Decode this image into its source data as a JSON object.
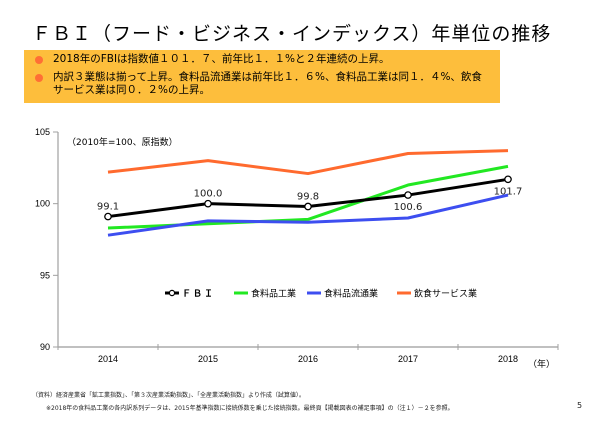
{
  "title": "ＦＢＩ（フード・ビジネス・インデックス）年単位の推移",
  "summary": {
    "bullets": [
      "2018年のFBIは指数値１０１．７、前年比１．１%と２年連続の上昇。",
      "内訳３業態は揃って上昇。食料品流通業は前年比１．６%、食料品工業は同１．４%、飲食",
      "サービス業は同０．２%の上昇。"
    ],
    "colors": {
      "background": "#FDBE3C",
      "bullet": "#FF6F35"
    }
  },
  "chart_data": {
    "type": "line",
    "title": "",
    "note": "（2010年=100、原指数）",
    "xlabel": "（年）",
    "ylabel": "",
    "categories": [
      "2014",
      "2015",
      "2016",
      "2017",
      "2018"
    ],
    "ylim": [
      90,
      105
    ],
    "yticks": [
      90,
      95,
      100,
      105
    ],
    "grid": false,
    "legend_position": "bottom-center",
    "series": [
      {
        "name": "ＦＢＩ",
        "color": "#000000",
        "markers": true,
        "labels": true,
        "values": [
          99.1,
          100.0,
          99.8,
          100.6,
          101.7
        ],
        "data_labels": [
          "99.1",
          "100.0",
          "99.8",
          "100.6",
          "101.7"
        ],
        "label_side": [
          "above",
          "above",
          "above",
          "below",
          "below"
        ]
      },
      {
        "name": "食料品工業",
        "color": "#22E822",
        "values": [
          98.3,
          98.6,
          98.9,
          101.3,
          102.6
        ]
      },
      {
        "name": "食料品流通業",
        "color": "#3D4EF0",
        "values": [
          97.8,
          98.8,
          98.7,
          99.0,
          100.6
        ]
      },
      {
        "name": "飲食サービス業",
        "color": "#FF6A2E",
        "values": [
          102.2,
          103.0,
          102.1,
          103.5,
          103.7
        ]
      }
    ]
  },
  "footer": {
    "source": "（資料）経済産業省「鉱工業指数」、「第３次産業活動指数」、「全産業活動指数」より作成（試算値）。",
    "note": "※2018年の食料品工業の各内訳系列データは、2015年基準指数に接続係数を乗じた接続指数。最終頁【掲載図表の補足事項】の（注１）－２を参照。",
    "page_number": "5"
  }
}
